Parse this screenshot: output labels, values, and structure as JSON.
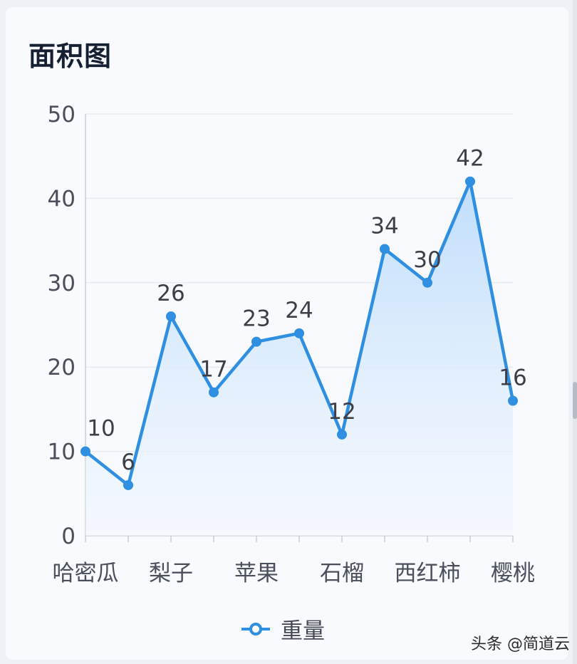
{
  "title": "面积图",
  "chart_data": {
    "type": "area",
    "categories": [
      "哈密瓜",
      "",
      "梨子",
      "",
      "苹果",
      "",
      "石榴",
      "",
      "西红柿",
      "",
      "樱桃"
    ],
    "series": [
      {
        "name": "重量",
        "values": [
          10,
          6,
          26,
          17,
          23,
          24,
          12,
          34,
          30,
          42,
          16
        ]
      }
    ],
    "ylim": [
      0,
      50
    ],
    "yticks": [
      "0",
      "10",
      "20",
      "30",
      "40",
      "50"
    ],
    "xtick_labels": [
      "哈密瓜",
      "梨子",
      "苹果",
      "石榴",
      "西红柿",
      "樱桃"
    ],
    "data_labels": [
      "10",
      "6",
      "26",
      "17",
      "23",
      "24",
      "12",
      "34",
      "30",
      "42",
      "16"
    ],
    "grid": true,
    "legend": "bottom",
    "line_color": "#2f8fe0",
    "fill_top_color": "#bcdcfb",
    "fill_bottom_color": "#f3f8fe"
  },
  "legend": {
    "label": "重量"
  },
  "watermark": "头条 @简道云"
}
